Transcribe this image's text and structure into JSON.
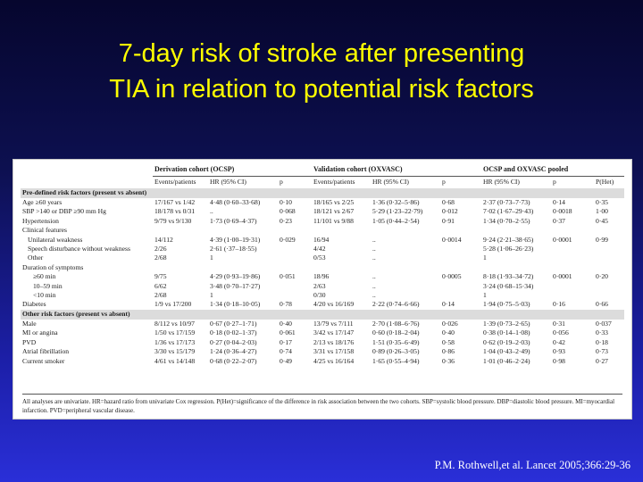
{
  "slide": {
    "title_line1": "7-day risk of stroke after presenting",
    "title_line2": "TIA in relation to potential risk factors",
    "citation": "P.M. Rothwell,et al. Lancet 2005;366:29-36"
  },
  "table": {
    "groups": [
      "Derivation cohort (OCSP)",
      "Validation cohort (OXVASC)",
      "OCSP and OXVASC pooled"
    ],
    "subheaders": {
      "ocsp": [
        "Events/patients",
        "HR (95% CI)",
        "p"
      ],
      "oxvasc": [
        "Events/patients",
        "HR (95% CI)",
        "p"
      ],
      "pooled": [
        "HR (95% CI)",
        "p",
        "P(Het)"
      ]
    },
    "section1": "Pre-defined risk factors (present vs absent)",
    "section2": "Other risk factors (present vs absent)",
    "rows": [
      {
        "label": "Age ≥60 years",
        "c": [
          "17/167 vs 1/42",
          "4·48 (0·60–33·68)",
          "0·10",
          "18/165 vs 2/25",
          "1·36 (0·32–5·86)",
          "0·68",
          "2·37 (0·73–7·73)",
          "0·14",
          "0·35"
        ]
      },
      {
        "label": "SBP >140 or DBP ≥90 mm Hg",
        "c": [
          "18/178 vs 0/31",
          "..",
          "0·068",
          "18/121 vs 2/67",
          "5·29 (1·23–22·79)",
          "0·012",
          "7·02 (1·67–29·43)",
          "0·0018",
          "1·00"
        ]
      },
      {
        "label": "Hypertension",
        "c": [
          "9/79 vs 9/130",
          "1·73 (0·69–4·37)",
          "0·23",
          "11/101 vs 9/88",
          "1·05 (0·44–2·54)",
          "0·91",
          "1·34 (0·70–2·55)",
          "0·37",
          "0·45"
        ]
      },
      {
        "label": "Clinical features",
        "c": [
          "",
          "",
          "",
          "",
          "",
          "",
          "",
          "",
          ""
        ]
      },
      {
        "label": "Unilateral weakness",
        "c": [
          "14/112",
          "4·39 (1·00–19·31)",
          "0·029",
          "16/94",
          "..",
          "0·0014",
          "9·24 (2·21–38·65)",
          "0·0001",
          "0·99"
        ]
      },
      {
        "label": "Speech disturbance without weakness",
        "c": [
          "2/26",
          "2·61 (·37–18·55)",
          "",
          "4/42",
          "..",
          "",
          "5·28 (1·06–26·23)",
          "",
          ""
        ]
      },
      {
        "label": "Other",
        "c": [
          "2/68",
          "1",
          "",
          "0/53",
          "..",
          "",
          "1",
          "",
          ""
        ]
      },
      {
        "label": "Duration of symptoms",
        "c": [
          "",
          "",
          "",
          "",
          "",
          "",
          "",
          "",
          ""
        ]
      },
      {
        "label": "≥60 min",
        "c": [
          "9/75",
          "4·29 (0·93–19·86)",
          "0·051",
          "18/96",
          "..",
          "0·0005",
          "8·18 (1·93–34·72)",
          "0·0001",
          "0·20"
        ]
      },
      {
        "label": "10–59 min",
        "c": [
          "6/62",
          "3·48 (0·70–17·27)",
          "",
          "2/63",
          "..",
          "",
          "3·24 (0·68–15·34)",
          "",
          ""
        ]
      },
      {
        "label": "<10 min",
        "c": [
          "2/68",
          "1",
          "",
          "0/30",
          "..",
          "",
          "1",
          "",
          ""
        ]
      },
      {
        "label": "Diabetes",
        "c": [
          "1/9 vs 17/200",
          "1·34 (0·18–10·05)",
          "0·78",
          "4/20 vs 16/169",
          "2·22 (0·74–6·66)",
          "0·14",
          "1·94 (0·75–5·03)",
          "0·16",
          "0·66"
        ]
      },
      {
        "label": "Male",
        "c": [
          "8/112 vs 10/97",
          "0·67 (0·27–1·71)",
          "0·40",
          "13/79 vs 7/111",
          "2·70 (1·08–6·76)",
          "0·026",
          "1·39 (0·73–2·65)",
          "0·31",
          "0·037"
        ]
      },
      {
        "label": "MI or angina",
        "c": [
          "1/50 vs 17/159",
          "0·18 (0·02–1·37)",
          "0·061",
          "3/42 vs 17/147",
          "0·60 (0·18–2·04)",
          "0·40",
          "0·38 (0·14–1·08)",
          "0·056",
          "0·33"
        ]
      },
      {
        "label": "PVD",
        "c": [
          "1/36 vs 17/173",
          "0·27 (0·04–2·03)",
          "0·17",
          "2/13 vs 18/176",
          "1·51 (0·35–6·49)",
          "0·58",
          "0·62 (0·19–2·03)",
          "0·42",
          "0·18"
        ]
      },
      {
        "label": "Atrial fibrillation",
        "c": [
          "3/30 vs 15/179",
          "1·24 (0·36–4·27)",
          "0·74",
          "3/31 vs 17/158",
          "0·89 (0·26–3·05)",
          "0·86",
          "1·04 (0·43–2·49)",
          "0·93",
          "0·73"
        ]
      },
      {
        "label": "Current smoker",
        "c": [
          "4/61 vs 14/148",
          "0·68 (0·22–2·07)",
          "0·49",
          "4/25 vs 16/164",
          "1·65 (0·55–4·94)",
          "0·36",
          "1·01 (0·46–2·24)",
          "0·98",
          "0·27"
        ]
      }
    ],
    "footnote": "All analyses are univariate. HR=hazard ratio from univariate Cox regression. P(Het)=significance of the difference in risk association between the two cohorts. SBP=systolic blood pressure. DBP=diastolic blood pressure. MI=myocardial infarction. PVD=peripheral vascular disease."
  }
}
